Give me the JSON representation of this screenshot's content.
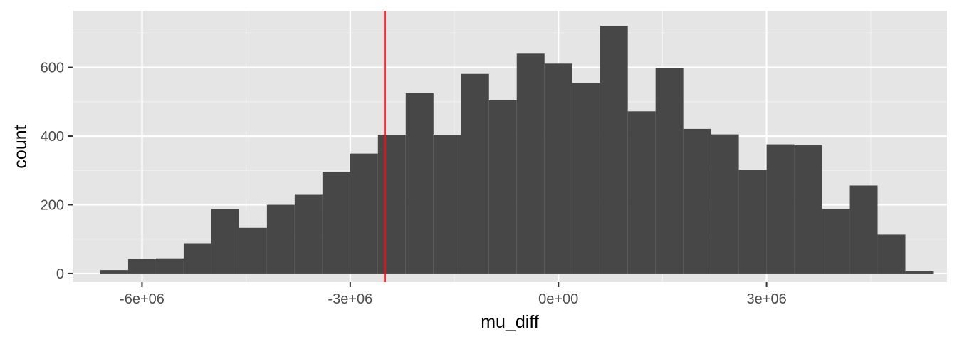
{
  "chart_data": {
    "type": "bar",
    "subtype": "histogram",
    "title": "",
    "xlabel": "mu_diff",
    "ylabel": "count",
    "xlim": [
      -7000000,
      5600000
    ],
    "ylim": [
      -25,
      765
    ],
    "x_ticks": [
      {
        "value": -6000000,
        "label": "-6e+06"
      },
      {
        "value": -3000000,
        "label": "-3e+06"
      },
      {
        "value": 0,
        "label": "0e+00"
      },
      {
        "value": 3000000,
        "label": "3e+06"
      }
    ],
    "y_ticks": [
      {
        "value": 0,
        "label": "0"
      },
      {
        "value": 200,
        "label": "200"
      },
      {
        "value": 400,
        "label": "400"
      },
      {
        "value": 600,
        "label": "600"
      }
    ],
    "bin_width": 400000,
    "bin_starts": [
      -6600000,
      -6200000,
      -5800000,
      -5400000,
      -5000000,
      -4600000,
      -4200000,
      -3800000,
      -3400000,
      -3000000,
      -2600000,
      -2200000,
      -1800000,
      -1400000,
      -1000000,
      -600000,
      -200000,
      200000,
      600000,
      1000000,
      1400000,
      1800000,
      2200000,
      2600000,
      3000000,
      3400000,
      3800000,
      4200000,
      4600000,
      5000000
    ],
    "counts": [
      10,
      42,
      44,
      88,
      187,
      133,
      200,
      231,
      296,
      349,
      404,
      525,
      404,
      581,
      504,
      640,
      611,
      555,
      721,
      472,
      598,
      421,
      405,
      302,
      376,
      373,
      188,
      256,
      113,
      6
    ],
    "reference_line": {
      "x": -2500000,
      "color": "#e8141c"
    },
    "colors": {
      "bars": "#474747",
      "panel": "#e5e5e5",
      "grid_major": "#ffffff",
      "grid_minor": "#f2f2f2"
    },
    "grid": true,
    "legend": "none"
  }
}
